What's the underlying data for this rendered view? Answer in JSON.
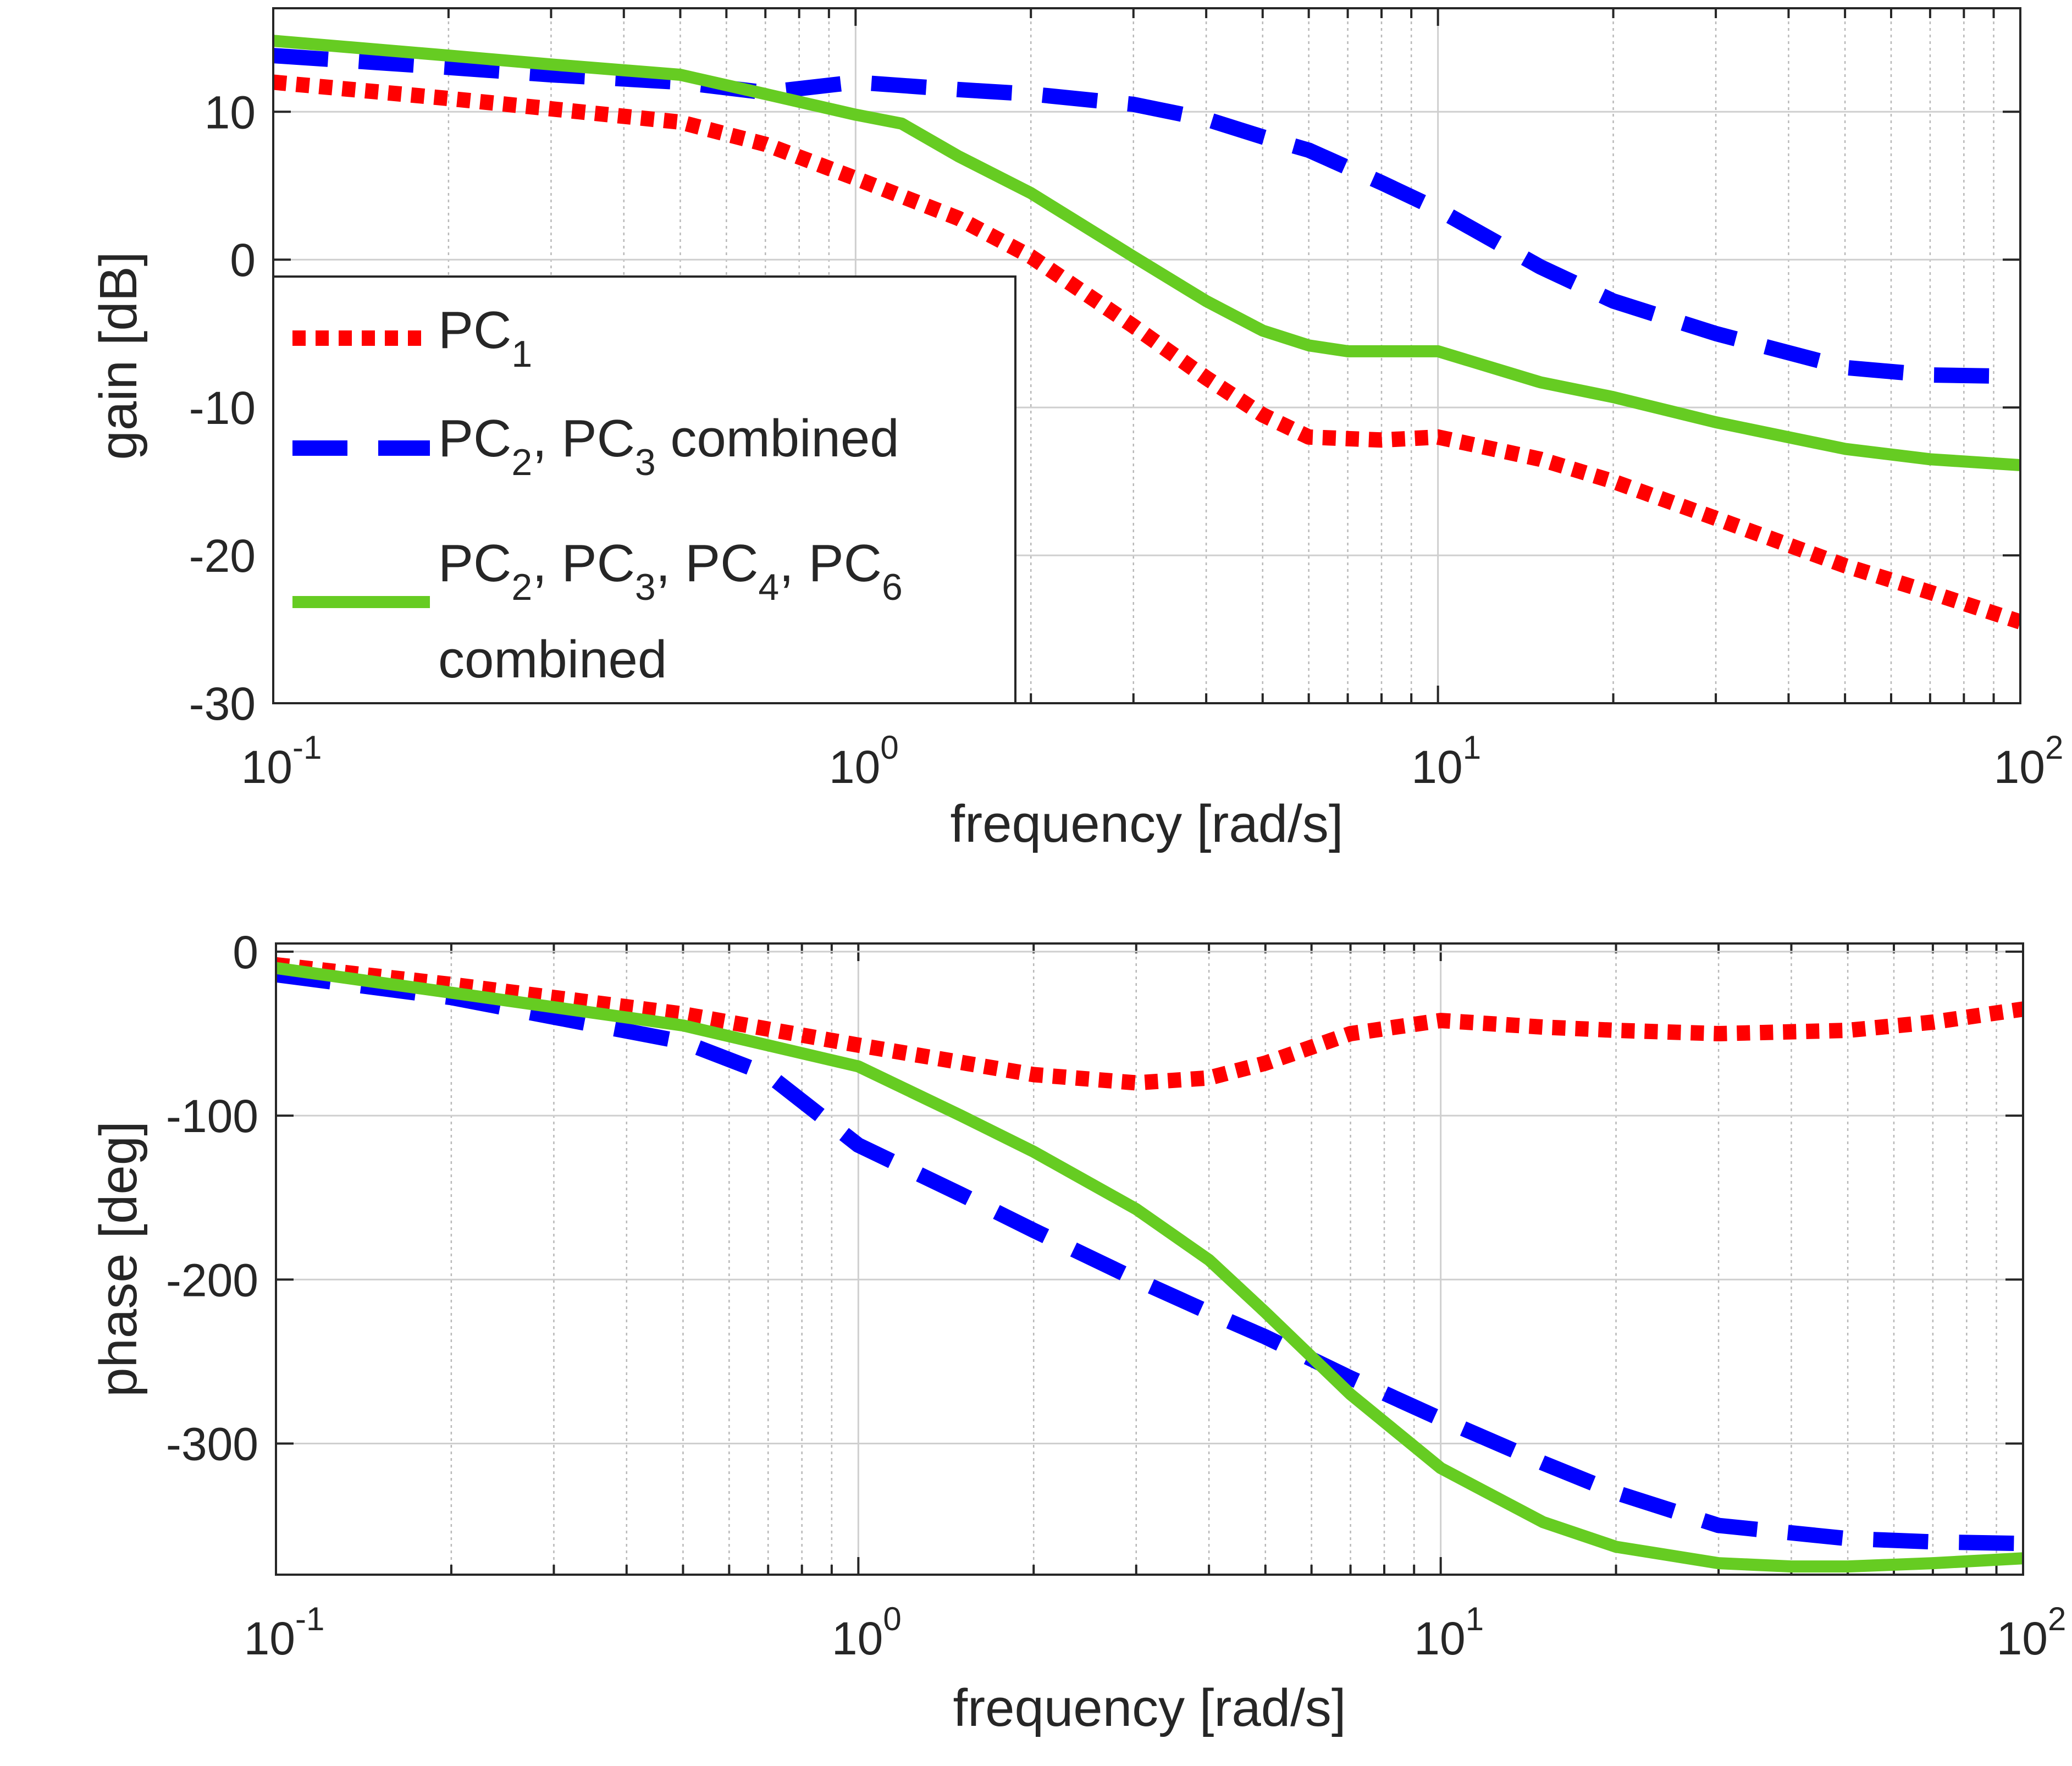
{
  "chart_data": [
    {
      "type": "line",
      "xscale": "log",
      "xlim": [
        0.1,
        100
      ],
      "ylim": [
        -30,
        17
      ],
      "xlabel": "frequency [rad/s]",
      "ylabel": "gain [dB]",
      "grid": true,
      "x_ticks": [
        {
          "base": "10",
          "exp": "-1"
        },
        {
          "base": "10",
          "exp": "0"
        },
        {
          "base": "10",
          "exp": "1"
        },
        {
          "base": "10",
          "exp": "2"
        }
      ],
      "y_ticks": [
        10,
        0,
        -10,
        -20,
        -30
      ],
      "legend": {
        "placement": "middle-left",
        "entries": [
          {
            "series": 0,
            "lines": [
              [
                {
                  "t": "PC"
                },
                {
                  "t": "1",
                  "sub": true
                }
              ]
            ]
          },
          {
            "series": 1,
            "lines": [
              [
                {
                  "t": "PC"
                },
                {
                  "t": "2",
                  "sub": true
                },
                {
                  "t": ", PC"
                },
                {
                  "t": "3",
                  "sub": true
                },
                {
                  "t": " combined"
                }
              ]
            ]
          },
          {
            "series": 2,
            "lines": [
              [
                {
                  "t": "PC"
                },
                {
                  "t": "2",
                  "sub": true
                },
                {
                  "t": ", PC"
                },
                {
                  "t": "3",
                  "sub": true
                },
                {
                  "t": ", PC"
                },
                {
                  "t": "4",
                  "sub": true
                },
                {
                  "t": ", PC"
                },
                {
                  "t": "6",
                  "sub": true
                }
              ],
              [
                {
                  "t": "combined"
                }
              ]
            ]
          }
        ]
      },
      "series": [
        {
          "style": "dotted",
          "color": "#ff0000",
          "points": [
            [
              0.1,
              12
            ],
            [
              0.2,
              10.9
            ],
            [
              0.3,
              10.2
            ],
            [
              0.5,
              9.3
            ],
            [
              0.7,
              7.8
            ],
            [
              1,
              5.5
            ],
            [
              1.5,
              2.8
            ],
            [
              2,
              0.2
            ],
            [
              3,
              -4.5
            ],
            [
              4,
              -8
            ],
            [
              5,
              -10.5
            ],
            [
              6,
              -12
            ],
            [
              8,
              -12.2
            ],
            [
              10,
              -12
            ],
            [
              15,
              -13.5
            ],
            [
              20,
              -15
            ],
            [
              30,
              -17.5
            ],
            [
              50,
              -20.7
            ],
            [
              70,
              -22.5
            ],
            [
              100,
              -24.5
            ]
          ]
        },
        {
          "style": "dashed",
          "color": "#0000ff",
          "points": [
            [
              0.1,
              13.8
            ],
            [
              0.2,
              13
            ],
            [
              0.3,
              12.5
            ],
            [
              0.5,
              12
            ],
            [
              0.7,
              11.3
            ],
            [
              1,
              12
            ],
            [
              1.5,
              11.5
            ],
            [
              2,
              11.2
            ],
            [
              3,
              10.5
            ],
            [
              4,
              9.5
            ],
            [
              5,
              8.3
            ],
            [
              6,
              7.4
            ],
            [
              8,
              5.2
            ],
            [
              10,
              3.4
            ],
            [
              15,
              -0.5
            ],
            [
              20,
              -2.8
            ],
            [
              30,
              -5
            ],
            [
              50,
              -7.3
            ],
            [
              70,
              -7.8
            ],
            [
              100,
              -7.9
            ]
          ]
        },
        {
          "style": "solid",
          "color": "#66cc22",
          "points": [
            [
              0.1,
              14.8
            ],
            [
              0.2,
              13.8
            ],
            [
              0.3,
              13.2
            ],
            [
              0.5,
              12.5
            ],
            [
              0.7,
              11.2
            ],
            [
              1,
              9.8
            ],
            [
              1.2,
              9.2
            ],
            [
              1.5,
              7
            ],
            [
              2,
              4.5
            ],
            [
              3,
              0.2
            ],
            [
              4,
              -2.8
            ],
            [
              5,
              -4.8
            ],
            [
              6,
              -5.8
            ],
            [
              7,
              -6.2
            ],
            [
              8,
              -6.2
            ],
            [
              10,
              -6.2
            ],
            [
              15,
              -8.3
            ],
            [
              20,
              -9.3
            ],
            [
              30,
              -11
            ],
            [
              50,
              -12.8
            ],
            [
              70,
              -13.5
            ],
            [
              100,
              -13.9
            ]
          ]
        }
      ]
    },
    {
      "type": "line",
      "xscale": "log",
      "xlim": [
        0.1,
        100
      ],
      "ylim": [
        -380,
        5
      ],
      "xlabel": "frequency [rad/s]",
      "ylabel": "phase [deg]",
      "grid": true,
      "x_ticks": [
        {
          "base": "10",
          "exp": "-1"
        },
        {
          "base": "10",
          "exp": "0"
        },
        {
          "base": "10",
          "exp": "1"
        },
        {
          "base": "10",
          "exp": "2"
        }
      ],
      "y_ticks": [
        0,
        -100,
        -200,
        -300
      ],
      "series": [
        {
          "style": "dotted",
          "color": "#ff0000",
          "points": [
            [
              0.1,
              -8
            ],
            [
              0.2,
              -20
            ],
            [
              0.5,
              -38
            ],
            [
              1,
              -57
            ],
            [
              2,
              -75
            ],
            [
              3,
              -80
            ],
            [
              4,
              -77
            ],
            [
              5,
              -68
            ],
            [
              7,
              -50
            ],
            [
              10,
              -42
            ],
            [
              15,
              -46
            ],
            [
              20,
              -48
            ],
            [
              30,
              -50
            ],
            [
              50,
              -48
            ],
            [
              70,
              -43
            ],
            [
              100,
              -35
            ]
          ]
        },
        {
          "style": "dashed",
          "color": "#0000ff",
          "points": [
            [
              0.1,
              -14
            ],
            [
              0.2,
              -28
            ],
            [
              0.5,
              -55
            ],
            [
              0.7,
              -75
            ],
            [
              1,
              -118
            ],
            [
              1.5,
              -148
            ],
            [
              2,
              -170
            ],
            [
              3,
              -200
            ],
            [
              4,
              -220
            ],
            [
              5,
              -235
            ],
            [
              7,
              -260
            ],
            [
              10,
              -285
            ],
            [
              15,
              -312
            ],
            [
              20,
              -330
            ],
            [
              30,
              -350
            ],
            [
              50,
              -358
            ],
            [
              70,
              -360
            ],
            [
              100,
              -361
            ]
          ]
        },
        {
          "style": "solid",
          "color": "#66cc22",
          "points": [
            [
              0.1,
              -10
            ],
            [
              0.2,
              -25
            ],
            [
              0.5,
              -45
            ],
            [
              1,
              -70
            ],
            [
              1.5,
              -100
            ],
            [
              2,
              -122
            ],
            [
              3,
              -157
            ],
            [
              4,
              -188
            ],
            [
              5,
              -220
            ],
            [
              7,
              -270
            ],
            [
              10,
              -315
            ],
            [
              15,
              -348
            ],
            [
              20,
              -363
            ],
            [
              30,
              -373
            ],
            [
              40,
              -375
            ],
            [
              50,
              -375
            ],
            [
              70,
              -373
            ],
            [
              100,
              -370
            ]
          ]
        }
      ]
    }
  ]
}
